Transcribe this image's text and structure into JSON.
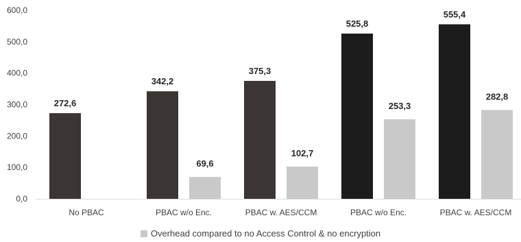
{
  "chart_data": {
    "type": "bar",
    "categories": [
      "No PBAC",
      "PBAC w/o Enc.",
      "PBAC w. AES/CCM",
      "PBAC w/o Enc.",
      "PBAC w. AES/CCM"
    ],
    "series": [
      {
        "values": [
          272.6,
          342.2,
          375.3,
          525.8,
          555.4
        ],
        "value_labels": [
          "272,6",
          "342,2",
          "375,3",
          "525,8",
          "555,4"
        ],
        "colors": [
          "#3b3633",
          "#3b3633",
          "#3b3633",
          "#1c1c1c",
          "#1c1c1c"
        ]
      },
      {
        "name": "Overhead compared to no Access Control & no encryption",
        "values": [
          null,
          69.6,
          102.7,
          253.3,
          282.8
        ],
        "value_labels": [
          "",
          "69,6",
          "102,7",
          "253,3",
          "282,8"
        ],
        "color": "#c9c9c9"
      }
    ],
    "ylim": [
      0,
      600
    ],
    "yticks": [
      "0,0",
      "100,0",
      "200,0",
      "300,0",
      "400,0",
      "500,0",
      "600,0"
    ],
    "grid": false,
    "legend": "bottom"
  }
}
